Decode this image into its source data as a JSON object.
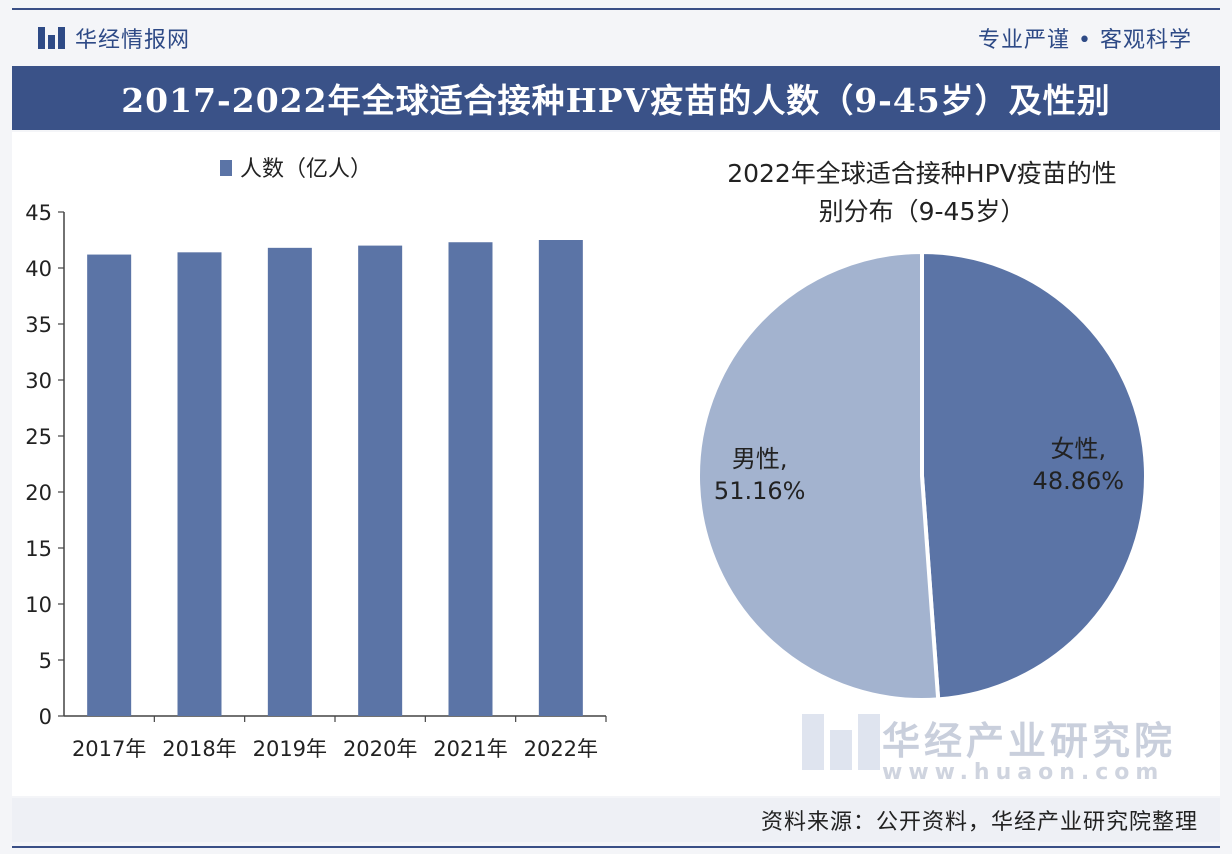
{
  "header": {
    "brand": "华经情报网",
    "slogan": "专业严谨 • 客观科学",
    "title": "2017-2022年全球适合接种HPV疫苗的人数（9-45岁）及性别"
  },
  "watermark": {
    "name": "华经产业研究院",
    "url": "www.huaon.com"
  },
  "footer": {
    "source": "资料来源：公开资料，华经产业研究院整理"
  },
  "colors": {
    "bar": "#5b74a6",
    "pie_female": "#5b74a6",
    "pie_male": "#a3b3cf",
    "header_band": "#3a5288"
  },
  "chart_data": [
    {
      "type": "bar",
      "title": "",
      "legend": [
        "人数（亿人）"
      ],
      "legend_position": "top",
      "categories": [
        "2017年",
        "2018年",
        "2019年",
        "2020年",
        "2021年",
        "2022年"
      ],
      "series": [
        {
          "name": "人数（亿人）",
          "values": [
            41.2,
            41.4,
            41.8,
            42.0,
            42.3,
            42.5
          ]
        }
      ],
      "ylim": [
        0,
        45
      ],
      "yticks": [
        0,
        5,
        10,
        15,
        20,
        25,
        30,
        35,
        40,
        45
      ],
      "xlabel": "",
      "ylabel": "",
      "grid": false
    },
    {
      "type": "pie",
      "title": "2022年全球适合接种HPV疫苗的性别分布（9-45岁）",
      "title_lines": [
        "2022年全球适合接种HPV疫苗的性",
        "别分布（9-45岁）"
      ],
      "slices": [
        {
          "label": "女性,",
          "value": 48.86,
          "value_label": "48.86%"
        },
        {
          "label": "男性,",
          "value": 51.16,
          "value_label": "51.16%"
        }
      ]
    }
  ]
}
